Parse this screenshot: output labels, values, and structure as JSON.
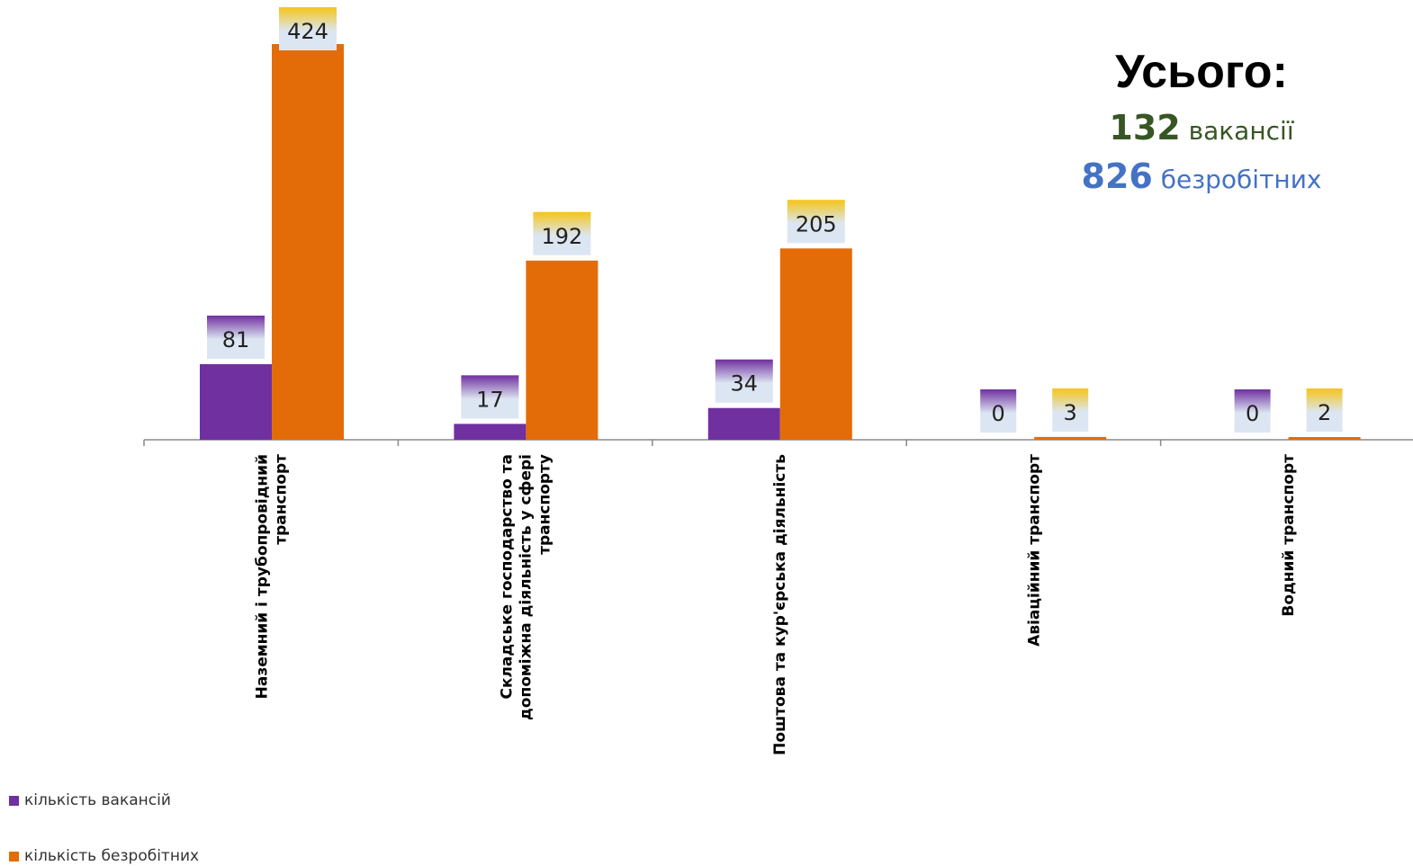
{
  "chart_data": {
    "type": "bar",
    "categories": [
      "Наземний і трубопровідний транспорт",
      "Складське господарство та допоміжна діяльність у сфері транспорту",
      "Поштова та кур'єрська діяльність",
      "Авіаційний транспорт",
      "Водний транспорт"
    ],
    "category_lines": [
      [
        "Наземний і трубопровідний",
        "транспорт"
      ],
      [
        "Складське господарство та",
        "допоміжна діяльність у сфері",
        "транспорту"
      ],
      [
        "Поштова та кур'єрська діяльність"
      ],
      [
        "Авіаційний транспорт"
      ],
      [
        "Водний транспорт"
      ]
    ],
    "series": [
      {
        "name": "кількість вакансій",
        "values": [
          81,
          17,
          34,
          0,
          0
        ],
        "color": "#7030A0"
      },
      {
        "name": "кількість безробітних",
        "values": [
          424,
          192,
          205,
          3,
          2
        ],
        "color": "#E36C09"
      }
    ],
    "ylim": [
      0,
      424
    ],
    "grid": false,
    "legend_position": "bottom-left",
    "label_box_colors": {
      "vacancies": "#7030A0",
      "unemployed": "#F5C518",
      "fill": "#DCE6F2"
    }
  },
  "totals": {
    "title": "Усього:",
    "vacancies_value": "132",
    "vacancies_label": "вакансії",
    "unemployed_value": "826",
    "unemployed_label": "безробітних",
    "vacancies_color": "#375623",
    "unemployed_color": "#4472C4"
  }
}
